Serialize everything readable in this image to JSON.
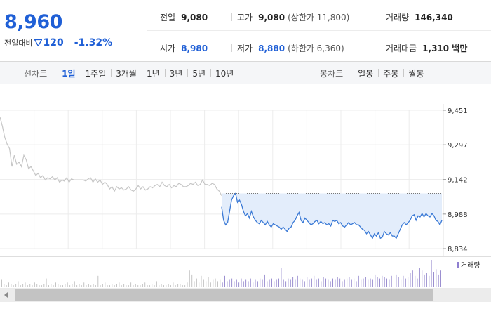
{
  "quote": {
    "price": "8,960",
    "change_label": "전일대비",
    "change_value": "120",
    "change_rate": "-1.32%",
    "direction": "down",
    "color": "#1f5fd6"
  },
  "info": {
    "prev_close": {
      "label": "전일",
      "value": "9,080"
    },
    "open": {
      "label": "시가",
      "value": "8,980"
    },
    "high": {
      "label": "고가",
      "value": "9,080",
      "extra": "(상한가 11,800)"
    },
    "low": {
      "label": "저가",
      "value": "8,880",
      "extra": "(하한가 6,360)"
    },
    "volume": {
      "label": "거래량",
      "value": "146,340"
    },
    "amount": {
      "label": "거래대금",
      "value": "1,310 백만"
    }
  },
  "tabs": {
    "line_label": "선차트",
    "line": [
      "1일",
      "1주일",
      "3개월",
      "1년",
      "3년",
      "5년",
      "10년"
    ],
    "line_active": 0,
    "candle_label": "봉차트",
    "candle": [
      "일봉",
      "주봉",
      "월봉"
    ]
  },
  "chart_data": {
    "type": "line",
    "y_ticks": [
      9451,
      9297,
      9142,
      8988,
      8834
    ],
    "y_tick_labels": [
      "9,451",
      "9,297",
      "9,142",
      "8,988",
      "8,834"
    ],
    "ylim": [
      8834,
      9451
    ],
    "reference_price": 9080,
    "grid": true,
    "series": [
      {
        "role": "previous-day",
        "color": "#c6c6c6",
        "values": [
          9420,
          9380,
          9330,
          9300,
          9280,
          9200,
          9250,
          9210,
          9220,
          9200,
          9250,
          9230,
          9190,
          9200,
          9180,
          9160,
          9170,
          9150,
          9160,
          9140,
          9150,
          9145,
          9155,
          9140,
          9150,
          9130,
          9140,
          9135,
          9150,
          9130,
          9145,
          9140,
          9140,
          9140,
          9140,
          9140,
          9135,
          9145,
          9150,
          9130,
          9145,
          9130,
          9140,
          9120,
          9130,
          9120,
          9100,
          9110,
          9090,
          9110,
          9100,
          9105,
          9095,
          9100,
          9110,
          9095,
          9090,
          9100,
          9115,
          9100,
          9110,
          9095,
          9100,
          9110,
          9105,
          9115,
          9120,
          9110,
          9130,
          9115,
          9110,
          9120,
          9105,
          9115,
          9110,
          9125,
          9120,
          9110,
          9110,
          9115,
          9125,
          9120,
          9130,
          9115,
          9120,
          9140,
          9120,
          9120,
          9115,
          9125,
          9120,
          9100,
          9090,
          9070
        ]
      },
      {
        "role": "today",
        "color": "#3b7ad6",
        "fill": "#e3edfb",
        "values": [
          9020,
          8960,
          8940,
          8950,
          9000,
          9050,
          9070,
          9080,
          9040,
          9050,
          9030,
          9000,
          8980,
          8990,
          8970,
          9000,
          8975,
          8960,
          8950,
          8945,
          8960,
          8950,
          8940,
          8955,
          8940,
          8930,
          8945,
          8940,
          8935,
          8930,
          8920,
          8930,
          8920,
          8910,
          8925,
          8930,
          8950,
          8960,
          8980,
          8995,
          8960,
          8950,
          8970,
          8960,
          8950,
          8940,
          8945,
          8955,
          8960,
          8945,
          8955,
          8945,
          8950,
          8940,
          8945,
          8935,
          8960,
          8955,
          8960,
          8945,
          8950,
          8935,
          8930,
          8940,
          8950,
          8940,
          8945,
          8950,
          8940,
          8940,
          8930,
          8920,
          8915,
          8900,
          8910,
          8895,
          8880,
          8900,
          8890,
          8905,
          8880,
          8885,
          8910,
          8900,
          8895,
          8905,
          8890,
          8890,
          8880,
          8900,
          8920,
          8940,
          8950,
          8940,
          8950,
          8960,
          8980,
          8985,
          8960,
          8980,
          8975,
          8990,
          8975,
          8990,
          8980,
          8975,
          8990,
          8980,
          8960,
          8955,
          8940,
          8960
        ]
      },
      {
        "role": "volume",
        "color": "#9b8fd0",
        "label": "거래량",
        "values": [
          5,
          2,
          1,
          3,
          2,
          1,
          2,
          4,
          1,
          2,
          3,
          1,
          2,
          1,
          3,
          2,
          1,
          1,
          2,
          6,
          1,
          2,
          1,
          3,
          2,
          1,
          1,
          2,
          3,
          1,
          2,
          4,
          1,
          2,
          1,
          3,
          1,
          2,
          1,
          2,
          1,
          8,
          1,
          2,
          3,
          1,
          1,
          2,
          1,
          2,
          3,
          1,
          2,
          1,
          1,
          3,
          1,
          2,
          1,
          1,
          2,
          3,
          1,
          1,
          2,
          1,
          4,
          1,
          2,
          1,
          1,
          2,
          1,
          3,
          1,
          2,
          2,
          1,
          1,
          3,
          12,
          9,
          4,
          6,
          3,
          8,
          5,
          4,
          7,
          3,
          5,
          6,
          4,
          5,
          3,
          8,
          4,
          5,
          6,
          4,
          5,
          3,
          6,
          4,
          5,
          4,
          6,
          3,
          5,
          4,
          6,
          5,
          9,
          4,
          5,
          6,
          4,
          5,
          6,
          14,
          5,
          4,
          6,
          5,
          7,
          5,
          8,
          6,
          5,
          4,
          7,
          5,
          6,
          8,
          5,
          6,
          4,
          7,
          6,
          5,
          4,
          6,
          5,
          7,
          6,
          4,
          5,
          6,
          7,
          5,
          6,
          4,
          8,
          5,
          6,
          7,
          5,
          6,
          5,
          9,
          7,
          6,
          8,
          7,
          6,
          5,
          8,
          6,
          9,
          7,
          5,
          8,
          6,
          7,
          10,
          12,
          8,
          6,
          14,
          12,
          9,
          10,
          8,
          20,
          11,
          13,
          9,
          12
        ]
      }
    ]
  }
}
